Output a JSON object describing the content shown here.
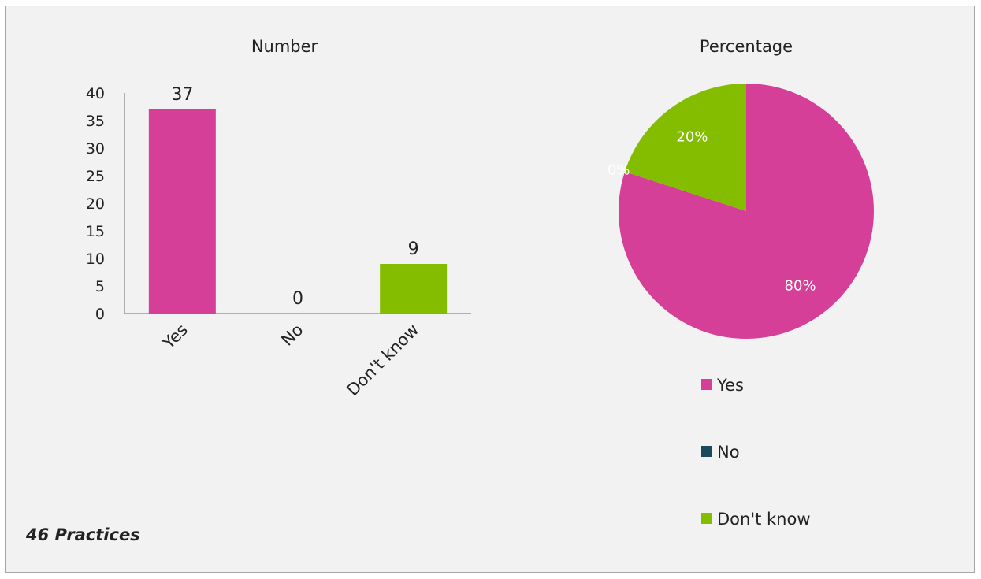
{
  "footnote": "46 Practices",
  "chart_data": [
    {
      "type": "bar",
      "title": "Number",
      "categories": [
        "Yes",
        "No",
        "Don't know"
      ],
      "values": [
        37,
        0,
        9
      ],
      "data_labels": [
        "37",
        "0",
        "9"
      ],
      "ylim": [
        0,
        40
      ],
      "yticks": [
        0,
        5,
        10,
        15,
        20,
        25,
        30,
        35,
        40
      ],
      "colors": [
        "#d63f97",
        "#1b4a5e",
        "#84bd00"
      ],
      "grid": false
    },
    {
      "type": "pie",
      "title": "Percentage",
      "labels": [
        "Yes",
        "No",
        "Don't know"
      ],
      "values": [
        80,
        0,
        20
      ],
      "data_labels": [
        "80%",
        "0%",
        "20%"
      ],
      "colors": [
        "#d63f97",
        "#1b4a5e",
        "#84bd00"
      ],
      "legend": {
        "position": "bottom",
        "entries": [
          "Yes",
          "No",
          "Don't know"
        ]
      }
    }
  ]
}
